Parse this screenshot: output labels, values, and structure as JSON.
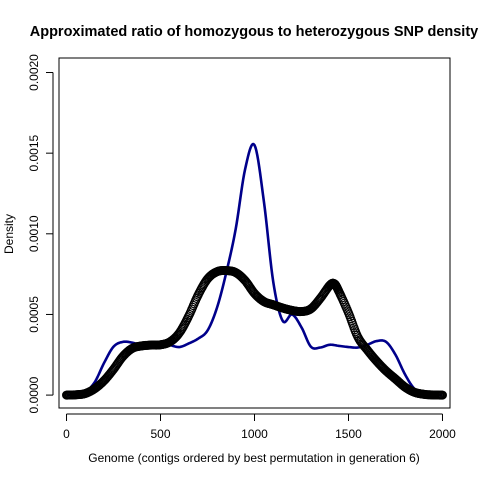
{
  "chart_data": {
    "type": "line",
    "title": "Approximated ratio of homozygous to heterozygous SNP density",
    "xlabel": "Genome (contigs ordered by best permutation in generation 6)",
    "ylabel": "Density",
    "xlim": [
      -40,
      2040
    ],
    "ylim": [
      -8e-05,
      0.00209
    ],
    "xticks": [
      0,
      500,
      1000,
      1500,
      2000
    ],
    "xtick_labels": [
      "0",
      "500",
      "1000",
      "1500",
      "2000"
    ],
    "yticks": [
      0.0,
      0.0005,
      0.001,
      0.0015,
      0.002
    ],
    "ytick_labels": [
      "0.0000",
      "0.0005",
      "0.0010",
      "0.0015",
      "0.0020"
    ],
    "grid": false,
    "series": [
      {
        "style": "line",
        "color": "#00008b",
        "points": [
          [
            0,
            0
          ],
          [
            50,
            3e-06
          ],
          [
            100,
            2e-05
          ],
          [
            150,
            8e-05
          ],
          [
            200,
            0.0002
          ],
          [
            250,
            0.0003
          ],
          [
            300,
            0.00033
          ],
          [
            350,
            0.000325
          ],
          [
            400,
            0.00031
          ],
          [
            450,
            0.000318
          ],
          [
            500,
            0.00032
          ],
          [
            550,
            0.00031
          ],
          [
            600,
            0.000298
          ],
          [
            650,
            0.00032
          ],
          [
            700,
            0.00035
          ],
          [
            750,
            0.0004
          ],
          [
            800,
            0.00054
          ],
          [
            850,
            0.00076
          ],
          [
            900,
            0.00103
          ],
          [
            950,
            0.0014
          ],
          [
            1000,
            0.00155
          ],
          [
            1050,
            0.0012
          ],
          [
            1100,
            0.0007
          ],
          [
            1150,
            0.00046
          ],
          [
            1200,
            0.0005
          ],
          [
            1250,
            0.00042
          ],
          [
            1300,
            0.0003
          ],
          [
            1350,
            0.000295
          ],
          [
            1400,
            0.000312
          ],
          [
            1450,
            0.000305
          ],
          [
            1500,
            0.000298
          ],
          [
            1550,
            0.000295
          ],
          [
            1600,
            0.000312
          ],
          [
            1650,
            0.000335
          ],
          [
            1700,
            0.00033
          ],
          [
            1750,
            0.00025
          ],
          [
            1800,
            0.00013
          ],
          [
            1850,
            4e-05
          ],
          [
            1900,
            1e-05
          ],
          [
            1950,
            2e-06
          ],
          [
            2000,
            0
          ]
        ]
      },
      {
        "style": "points",
        "color": "#000000",
        "points": [
          [
            0,
            0
          ],
          [
            50,
            2e-06
          ],
          [
            100,
            1e-05
          ],
          [
            150,
            4e-05
          ],
          [
            200,
            9e-05
          ],
          [
            250,
            0.00016
          ],
          [
            300,
            0.00024
          ],
          [
            350,
            0.00029
          ],
          [
            400,
            0.000305
          ],
          [
            450,
            0.00031
          ],
          [
            500,
            0.000312
          ],
          [
            550,
            0.00033
          ],
          [
            600,
            0.000385
          ],
          [
            650,
            0.00049
          ],
          [
            700,
            0.00062
          ],
          [
            750,
            0.00072
          ],
          [
            800,
            0.000765
          ],
          [
            850,
            0.000772
          ],
          [
            900,
            0.00076
          ],
          [
            950,
            0.00071
          ],
          [
            1000,
            0.00063
          ],
          [
            1050,
            0.00058
          ],
          [
            1100,
            0.00056
          ],
          [
            1150,
            0.00054
          ],
          [
            1200,
            0.000525
          ],
          [
            1250,
            0.000518
          ],
          [
            1300,
            0.000535
          ],
          [
            1350,
            0.0006
          ],
          [
            1400,
            0.00068
          ],
          [
            1425,
            0.00069
          ],
          [
            1450,
            0.00064
          ],
          [
            1500,
            0.00051
          ],
          [
            1550,
            0.00036
          ],
          [
            1600,
            0.00028
          ],
          [
            1650,
            0.00021
          ],
          [
            1700,
            0.00015
          ],
          [
            1750,
            0.0001
          ],
          [
            1800,
            5e-05
          ],
          [
            1850,
            1.8e-05
          ],
          [
            1900,
            5e-06
          ],
          [
            1950,
            1e-06
          ],
          [
            2000,
            0
          ]
        ]
      }
    ]
  }
}
